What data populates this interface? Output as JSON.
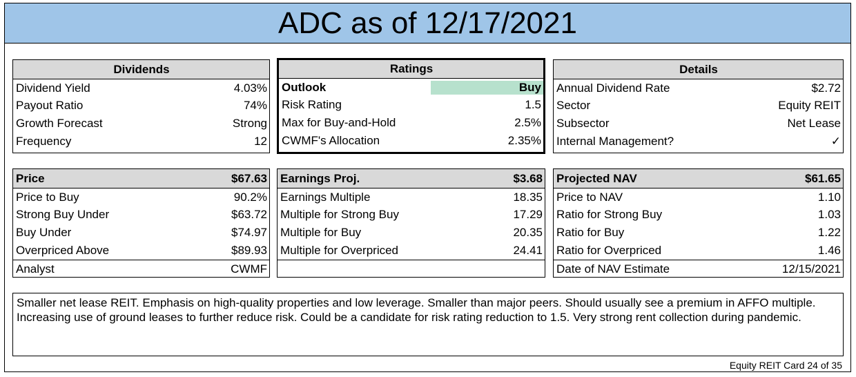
{
  "title": "ADC as of 12/17/2021",
  "dividends": {
    "header": "Dividends",
    "rows": [
      {
        "label": "Dividend Yield",
        "value": "4.03%"
      },
      {
        "label": "Payout Ratio",
        "value": "74%"
      },
      {
        "label": "Growth Forecast",
        "value": "Strong"
      },
      {
        "label": "Frequency",
        "value": "12"
      }
    ]
  },
  "ratings": {
    "header": "Ratings",
    "outlook_label": "Outlook",
    "outlook_value": "Buy",
    "outlook_color": "#b7e1cd",
    "rows": [
      {
        "label": "Risk Rating",
        "value": "1.5"
      },
      {
        "label": "Max for Buy-and-Hold",
        "value": "2.5%"
      },
      {
        "label": "CWMF's Allocation",
        "value": "2.35%"
      }
    ]
  },
  "details": {
    "header": "Details",
    "rows": [
      {
        "label": "Annual Dividend Rate",
        "value": "$2.72"
      },
      {
        "label": "Sector",
        "value": "Equity REIT"
      },
      {
        "label": "Subsector",
        "value": "Net Lease"
      },
      {
        "label": "Internal Management?",
        "value": "✓"
      }
    ]
  },
  "price": {
    "header_label": "Price",
    "header_value": "$67.63",
    "rows": [
      {
        "label": "Price to Buy",
        "value": "90.2%"
      },
      {
        "label": "Strong Buy Under",
        "value": "$63.72"
      },
      {
        "label": "Buy Under",
        "value": "$74.97"
      },
      {
        "label": "Overpriced Above",
        "value": "$89.93"
      }
    ],
    "analyst_label": "Analyst",
    "analyst_value": "CWMF"
  },
  "earnings": {
    "header_label": "Earnings Proj.",
    "header_value": "$3.68",
    "rows": [
      {
        "label": "Earnings Multiple",
        "value": "18.35"
      },
      {
        "label": "Multiple for Strong Buy",
        "value": "17.29"
      },
      {
        "label": "Multiple for Buy",
        "value": "20.35"
      },
      {
        "label": "Multiple for Overpriced",
        "value": "24.41"
      }
    ]
  },
  "nav": {
    "header_label": "Projected NAV",
    "header_value": "$61.65",
    "rows": [
      {
        "label": "Price to NAV",
        "value": "1.10"
      },
      {
        "label": "Ratio for Strong Buy",
        "value": "1.03"
      },
      {
        "label": "Ratio for Buy",
        "value": "1.22"
      },
      {
        "label": "Ratio for Overpriced",
        "value": "1.46"
      }
    ],
    "date_label": "Date of NAV Estimate",
    "date_value": "12/15/2021"
  },
  "notes": "Smaller net lease REIT. Emphasis on high-quality properties and low leverage. Smaller than major peers. Should usually see a premium in AFFO multiple. Increasing use of ground leases to further reduce risk. Could be a candidate for risk rating reduction to 1.5. Very strong rent collection during pandemic.",
  "footer": "Equity REIT Card 24 of 35"
}
